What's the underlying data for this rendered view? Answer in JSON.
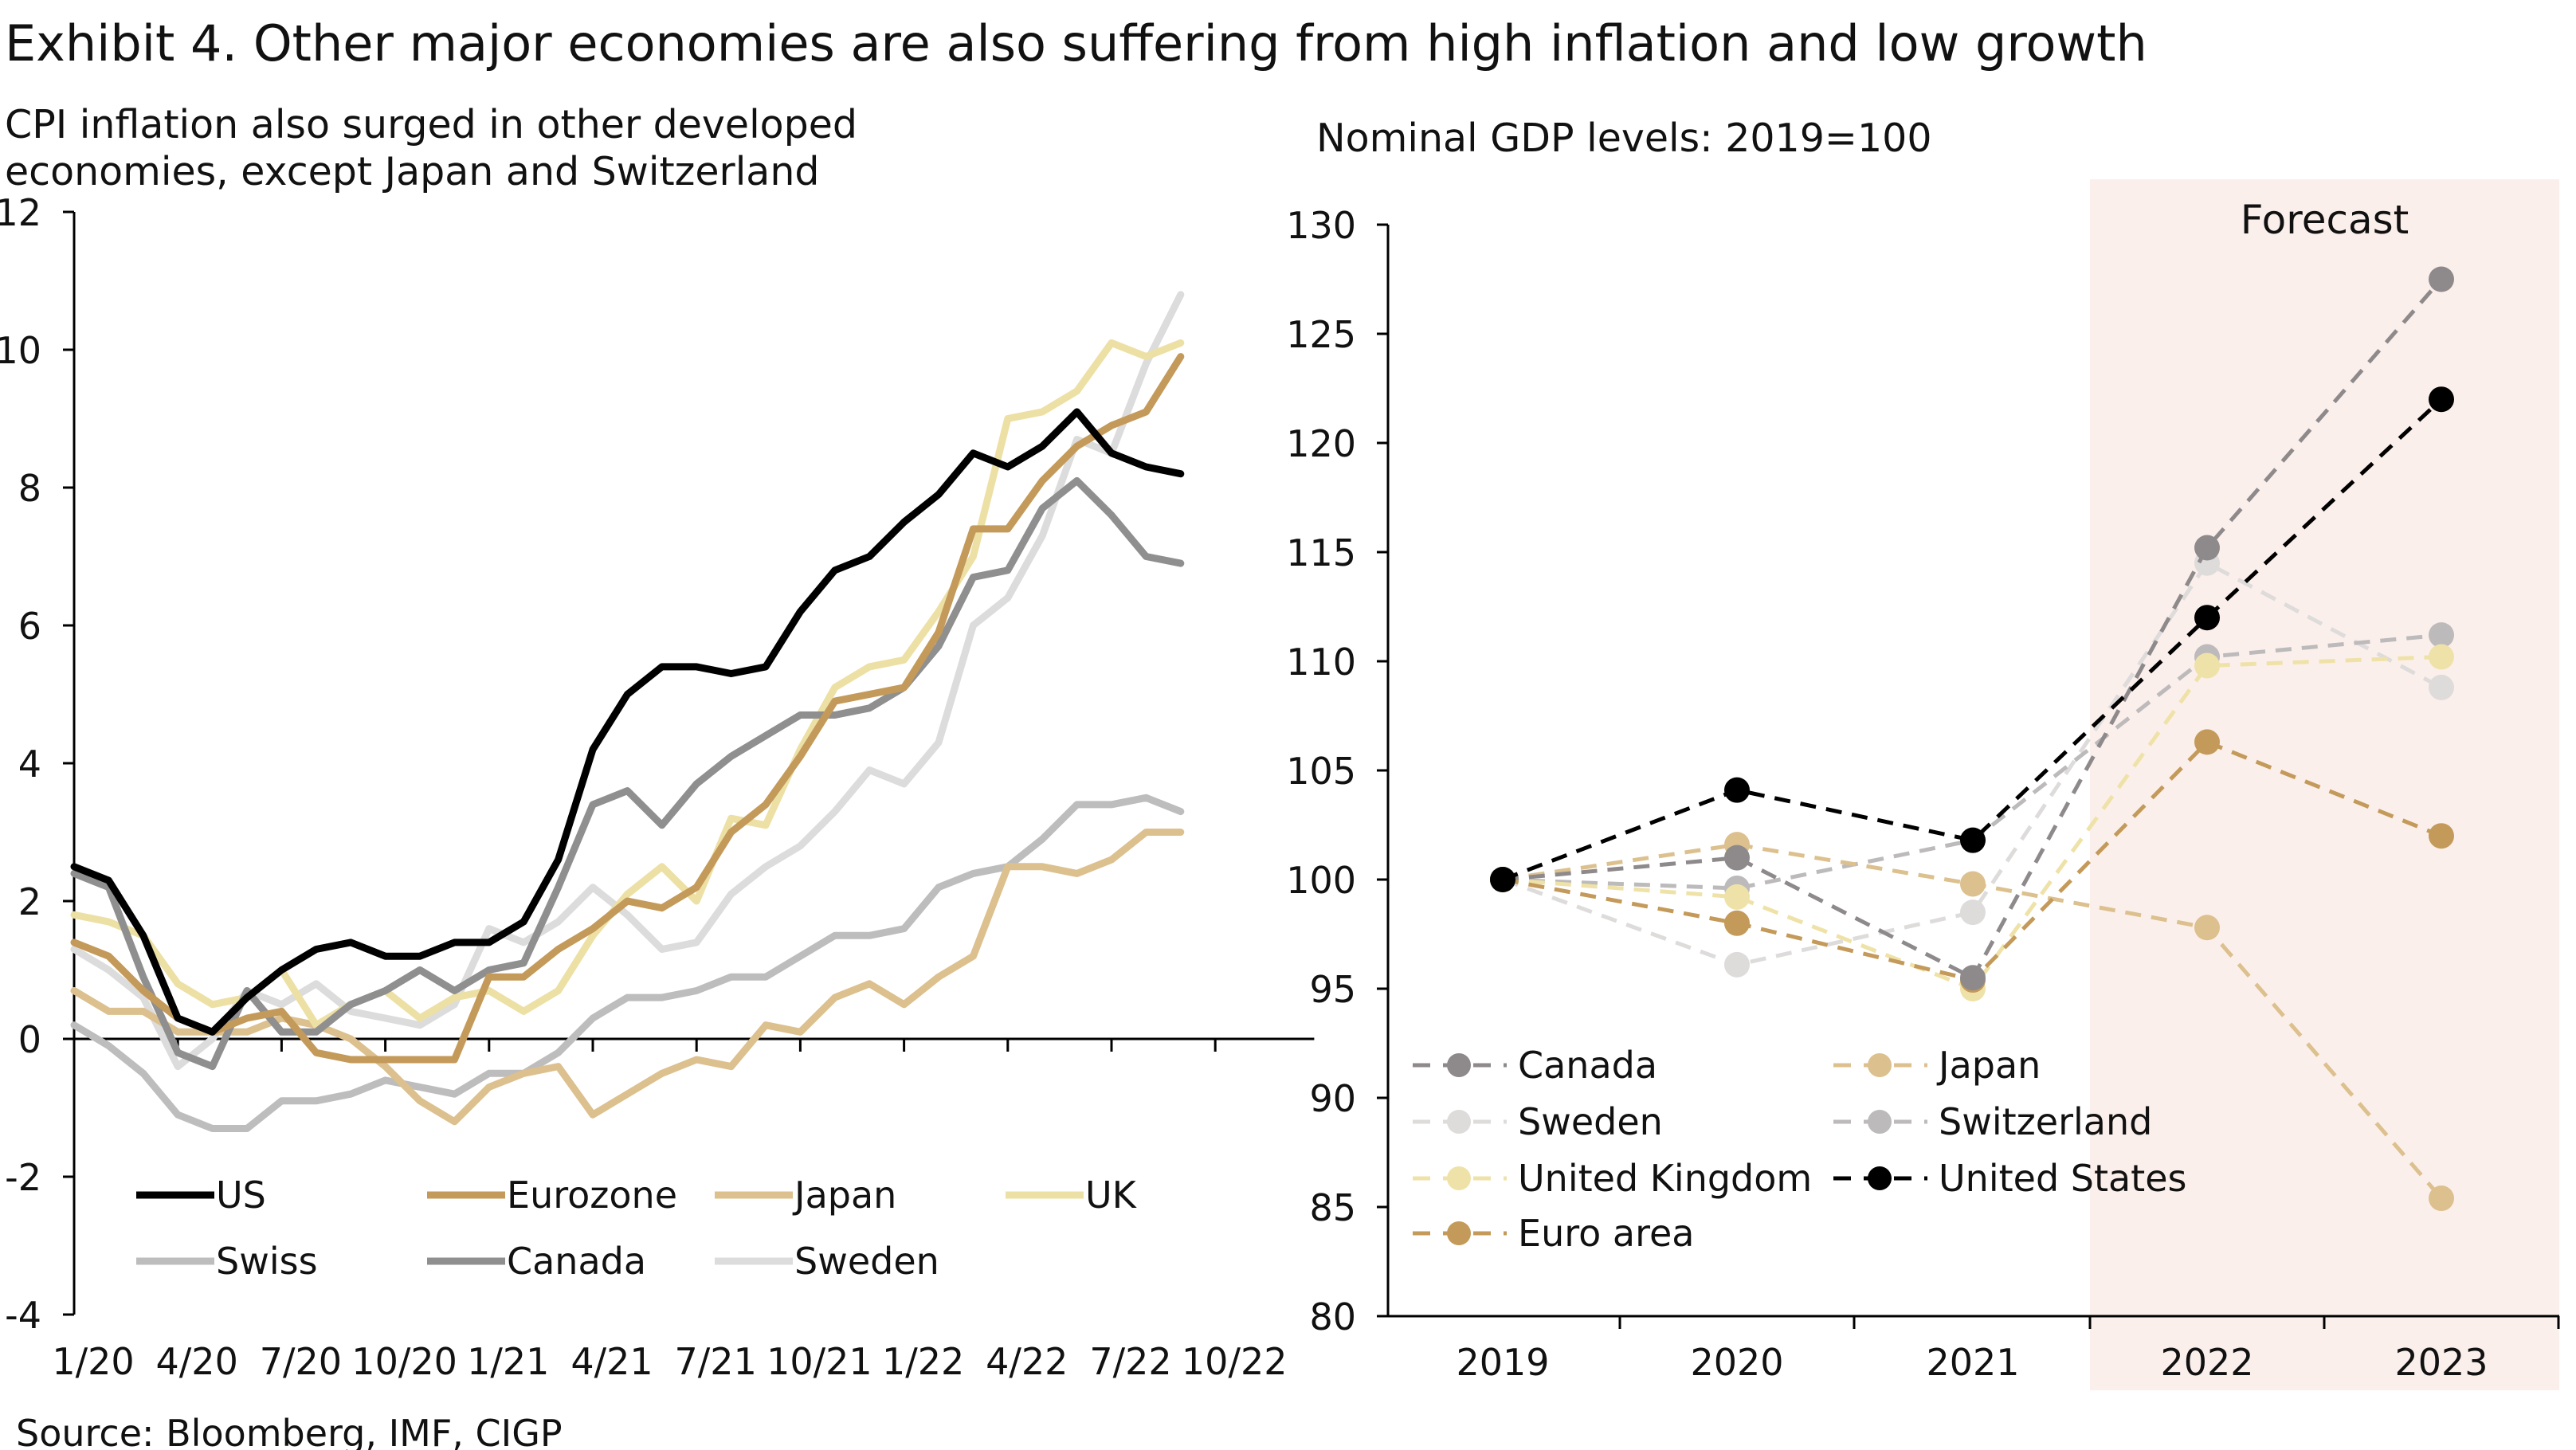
{
  "title": "Exhibit 4. Other major economies are also suffering from high inflation and low growth",
  "source": "Source: Bloomberg, IMF, CIGP",
  "chart_data": [
    {
      "type": "line",
      "subtitle_lines": [
        "CPI inflation also surged in other developed",
        "economies, except Japan and Switzerland"
      ],
      "x_start": "1/20",
      "x_frequency": "monthly",
      "x_tick_labels": [
        "1/20",
        "4/20",
        "7/20",
        "10/20",
        "1/21",
        "4/21",
        "7/21",
        "10/21",
        "1/22",
        "4/22",
        "7/22",
        "10/22"
      ],
      "ylim": [
        -4,
        12
      ],
      "y_ticks": [
        -4,
        -2,
        0,
        2,
        4,
        6,
        8,
        10,
        12
      ],
      "grid": false,
      "legend_placement": "bottom-inside",
      "series": [
        {
          "name": "US",
          "color": "#000000",
          "values": [
            2.5,
            2.3,
            1.5,
            0.3,
            0.1,
            0.6,
            1.0,
            1.3,
            1.4,
            1.2,
            1.2,
            1.4,
            1.4,
            1.7,
            2.6,
            4.2,
            5.0,
            5.4,
            5.4,
            5.3,
            5.4,
            6.2,
            6.8,
            7.0,
            7.5,
            7.9,
            8.5,
            8.3,
            8.6,
            9.1,
            8.5,
            8.3,
            8.2
          ]
        },
        {
          "name": "Eurozone",
          "color": "#c49a5a",
          "values": [
            1.4,
            1.2,
            0.7,
            0.3,
            0.1,
            0.3,
            0.4,
            -0.2,
            -0.3,
            -0.3,
            -0.3,
            -0.3,
            0.9,
            0.9,
            1.3,
            1.6,
            2.0,
            1.9,
            2.2,
            3.0,
            3.4,
            4.1,
            4.9,
            5.0,
            5.1,
            5.9,
            7.4,
            7.4,
            8.1,
            8.6,
            8.9,
            9.1,
            9.9
          ]
        },
        {
          "name": "Japan",
          "color": "#dcc08e",
          "values": [
            0.7,
            0.4,
            0.4,
            0.1,
            0.1,
            0.1,
            0.3,
            0.2,
            0.0,
            -0.4,
            -0.9,
            -1.2,
            -0.7,
            -0.5,
            -0.4,
            -1.1,
            -0.8,
            -0.5,
            -0.3,
            -0.4,
            0.2,
            0.1,
            0.6,
            0.8,
            0.5,
            0.9,
            1.2,
            2.5,
            2.5,
            2.4,
            2.6,
            3.0,
            3.0
          ]
        },
        {
          "name": "UK",
          "color": "#ede0a5",
          "values": [
            1.8,
            1.7,
            1.5,
            0.8,
            0.5,
            0.6,
            1.0,
            0.2,
            0.5,
            0.7,
            0.3,
            0.6,
            0.7,
            0.4,
            0.7,
            1.5,
            2.1,
            2.5,
            2.0,
            3.2,
            3.1,
            4.2,
            5.1,
            5.4,
            5.5,
            6.2,
            7.0,
            9.0,
            9.1,
            9.4,
            10.1,
            9.9,
            10.1
          ]
        },
        {
          "name": "Swiss",
          "color": "#bdbdbd",
          "values": [
            0.2,
            -0.1,
            -0.5,
            -1.1,
            -1.3,
            -1.3,
            -0.9,
            -0.9,
            -0.8,
            -0.6,
            -0.7,
            -0.8,
            -0.5,
            -0.5,
            -0.2,
            0.3,
            0.6,
            0.6,
            0.7,
            0.9,
            0.9,
            1.2,
            1.5,
            1.5,
            1.6,
            2.2,
            2.4,
            2.5,
            2.9,
            3.4,
            3.4,
            3.5,
            3.3
          ]
        },
        {
          "name": "Canada",
          "color": "#8f8f8f",
          "values": [
            2.4,
            2.2,
            0.9,
            -0.2,
            -0.4,
            0.7,
            0.1,
            0.1,
            0.5,
            0.7,
            1.0,
            0.7,
            1.0,
            1.1,
            2.2,
            3.4,
            3.6,
            3.1,
            3.7,
            4.1,
            4.4,
            4.7,
            4.7,
            4.8,
            5.1,
            5.7,
            6.7,
            6.8,
            7.7,
            8.1,
            7.6,
            7.0,
            6.9
          ]
        },
        {
          "name": "Sweden",
          "color": "#dcdcdc",
          "values": [
            1.3,
            1.0,
            0.6,
            -0.4,
            0.0,
            0.7,
            0.5,
            0.8,
            0.4,
            0.3,
            0.2,
            0.5,
            1.6,
            1.4,
            1.7,
            2.2,
            1.8,
            1.3,
            1.4,
            2.1,
            2.5,
            2.8,
            3.3,
            3.9,
            3.7,
            4.3,
            6.0,
            6.4,
            7.3,
            8.7,
            8.5,
            9.8,
            10.8
          ]
        }
      ]
    },
    {
      "type": "line",
      "subtitle": "Nominal GDP levels: 2019=100",
      "categories": [
        "2019",
        "2020",
        "2021",
        "2022",
        "2023"
      ],
      "ylim": [
        80,
        130
      ],
      "y_ticks": [
        80,
        85,
        90,
        95,
        100,
        105,
        110,
        115,
        120,
        125,
        130
      ],
      "grid": false,
      "line_style": "dashed-with-markers",
      "forecast_label": "Forecast",
      "forecast_categories": [
        "2022",
        "2023"
      ],
      "forecast_shade_color": "#fbefeb",
      "legend_placement": "bottom-left",
      "series": [
        {
          "name": "Canada",
          "color": "#8e8a8c",
          "values": [
            100,
            101.0,
            95.5,
            115.2,
            127.5
          ]
        },
        {
          "name": "Japan",
          "color": "#dcc08e",
          "values": [
            100,
            101.6,
            99.8,
            97.8,
            85.4
          ]
        },
        {
          "name": "Sweden",
          "color": "#dedbdb",
          "values": [
            100,
            96.1,
            98.5,
            114.5,
            108.8
          ]
        },
        {
          "name": "Switzerland",
          "color": "#bcbabb",
          "values": [
            100,
            99.6,
            101.8,
            110.2,
            111.2
          ]
        },
        {
          "name": "United Kingdom",
          "color": "#efe2a8",
          "values": [
            100,
            99.2,
            95.0,
            109.8,
            110.2
          ]
        },
        {
          "name": "United States",
          "color": "#000000",
          "values": [
            100,
            104.1,
            101.8,
            112.0,
            122.0
          ]
        },
        {
          "name": "Euro area",
          "color": "#c49a5a",
          "values": [
            100,
            98.0,
            95.4,
            106.3,
            102.0
          ]
        }
      ]
    }
  ]
}
